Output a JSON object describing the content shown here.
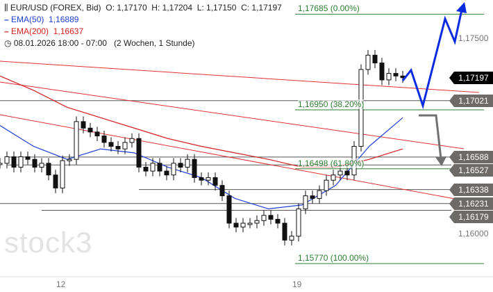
{
  "header": {
    "title": "EUR/USD (FOREX, Bid)",
    "open": "O: 1,17170",
    "high": "H: 1,17204",
    "low": "L: 1,17150",
    "close": "C: 1,17197",
    "ema50_label": "EMA(50)",
    "ema50_value": "1,16889",
    "ema200_label": "EMA(200)",
    "ema200_value": "1,16637",
    "period": "08.01.2026 18:00 - 07:00",
    "range": "(2 Wochen, 1 Stunde)"
  },
  "watermark": "stock3",
  "colors": {
    "ema50": "#1f3fd6",
    "ema200": "#d41f1f",
    "fib": "#2e7d32",
    "level": "#6e6a68",
    "current": "#000000",
    "candle": "#111111",
    "arrow_up": "#0a2be0",
    "arrow_down": "#707070"
  },
  "chart_data": {
    "type": "candlestick",
    "xlabels": [
      "12",
      "19"
    ],
    "ylim": [
      1.156,
      1.178
    ],
    "y_ticks": [
      "1,17500",
      "1,16000"
    ],
    "closes": [
      1.1654,
      1.1659,
      1.1651,
      1.1659,
      1.1657,
      1.1651,
      1.1654,
      1.1645,
      1.1635,
      1.1656,
      1.1657,
      1.1686,
      1.1681,
      1.1678,
      1.1675,
      1.167,
      1.1667,
      1.1665,
      1.167,
      1.1673,
      1.1651,
      1.1648,
      1.1654,
      1.1648,
      1.1645,
      1.1654,
      1.1651,
      1.1657,
      1.1643,
      1.1641,
      1.1643,
      1.1637,
      1.1629,
      1.1608,
      1.1605,
      1.1608,
      1.1608,
      1.161,
      1.1614,
      1.1611,
      1.1608,
      1.1595,
      1.1598,
      1.1619,
      1.1629,
      1.1627,
      1.1633,
      1.1641,
      1.1645,
      1.1648,
      1.1645,
      1.1667,
      1.1726,
      1.1737,
      1.1731,
      1.1718,
      1.1723,
      1.1721,
      1.17197
    ],
    "ema50": [
      1.1683,
      1.1667,
      1.1657,
      1.1665,
      1.1662,
      1.1651,
      1.1643,
      1.1627,
      1.1619,
      1.1622,
      1.1637,
      1.1667,
      1.1689
    ],
    "ema200": [
      1.1721,
      1.171,
      1.1697,
      1.1689,
      1.1681,
      1.1673,
      1.1667,
      1.1662,
      1.1657,
      1.1651,
      1.1651,
      1.1657,
      1.1665
    ],
    "fib_levels": [
      {
        "price": 1.17685,
        "label": "1,17685 (0.00%)"
      },
      {
        "price": 1.1695,
        "label": "1,16950 (38.20%)"
      },
      {
        "price": 1.16498,
        "label": "1,16498 (61.80%)"
      },
      {
        "price": 1.1577,
        "label": "1,15770 (100.00%)"
      }
    ],
    "levels": [
      {
        "price": 1.17197,
        "label": "1,17197",
        "current": true
      },
      {
        "price": 1.17021,
        "label": "1,17021"
      },
      {
        "price": 1.16588,
        "label": "1,16588"
      },
      {
        "price": 1.16527,
        "label": "1,16527"
      },
      {
        "price": 1.16338,
        "label": "1,16338"
      },
      {
        "price": 1.16231,
        "label": "1,16231"
      },
      {
        "price": 1.16179,
        "label": "1,16179"
      }
    ]
  }
}
